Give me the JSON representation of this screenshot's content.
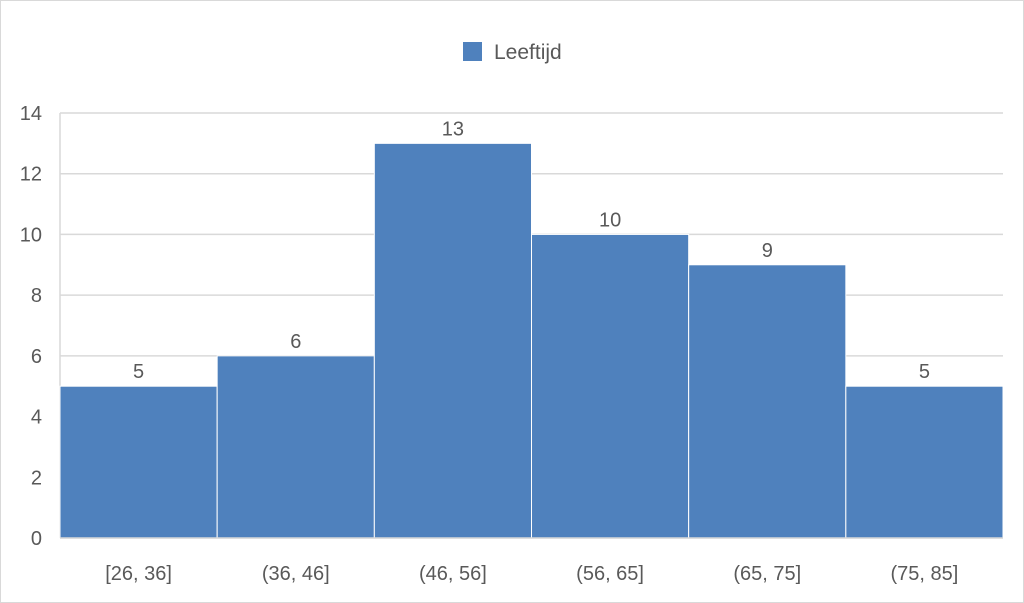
{
  "chart_data": {
    "type": "bar",
    "title": "",
    "legend": {
      "entries": [
        "Leeftijd"
      ],
      "placement": "top"
    },
    "categories": [
      "[26, 36]",
      "(36, 46]",
      "(46, 56]",
      "(56, 65]",
      "(65, 75]",
      "(75, 85]"
    ],
    "series": [
      {
        "name": "Leeftijd",
        "values": [
          5,
          6,
          13,
          10,
          9,
          5
        ],
        "color": "#4F81BD"
      }
    ],
    "xlabel": "",
    "ylabel": "",
    "ylim": [
      0,
      14
    ],
    "yticks": [
      0,
      2,
      4,
      6,
      8,
      10,
      12,
      14
    ],
    "grid": true,
    "data_labels": true
  }
}
